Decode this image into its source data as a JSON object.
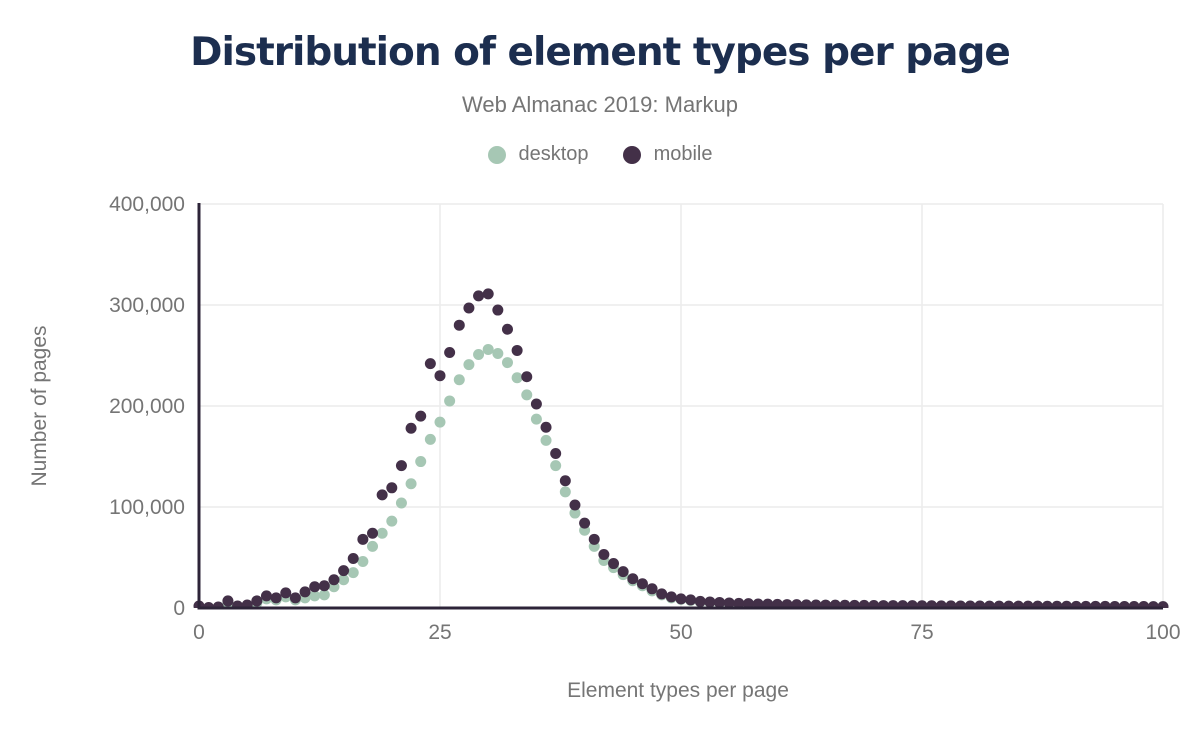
{
  "chart_data": {
    "type": "scatter",
    "title": "Distribution of element types per page",
    "subtitle": "Web Almanac 2019: Markup",
    "xlabel": "Element types per page",
    "ylabel": "Number of pages",
    "xlim": [
      0,
      100
    ],
    "ylim": [
      0,
      400000
    ],
    "grid": true,
    "legend_position": "top",
    "x_ticks": [
      {
        "value": 0,
        "label": "0"
      },
      {
        "value": 25,
        "label": "25"
      },
      {
        "value": 50,
        "label": "50"
      },
      {
        "value": 75,
        "label": "75"
      },
      {
        "value": 100,
        "label": "100"
      }
    ],
    "y_ticks": [
      {
        "value": 0,
        "label": "0"
      },
      {
        "value": 100000,
        "label": "100,000"
      },
      {
        "value": 200000,
        "label": "200,000"
      },
      {
        "value": 300000,
        "label": "300,000"
      },
      {
        "value": 400000,
        "label": "400,000"
      }
    ],
    "colors": {
      "title": "#1c2e4f",
      "subtitle": "#757575",
      "axis": "#2d2438",
      "grid": "#ececec",
      "tick_text": "#757575"
    },
    "x": [
      0,
      1,
      2,
      3,
      4,
      5,
      6,
      7,
      8,
      9,
      10,
      11,
      12,
      13,
      14,
      15,
      16,
      17,
      18,
      19,
      20,
      21,
      22,
      23,
      24,
      25,
      26,
      27,
      28,
      29,
      30,
      31,
      32,
      33,
      34,
      35,
      36,
      37,
      38,
      39,
      40,
      41,
      42,
      43,
      44,
      45,
      46,
      47,
      48,
      49,
      50,
      51,
      52,
      53,
      54,
      55,
      56,
      57,
      58,
      59,
      60,
      61,
      62,
      63,
      64,
      65,
      66,
      67,
      68,
      69,
      70,
      71,
      72,
      73,
      74,
      75,
      76,
      77,
      78,
      79,
      80,
      81,
      82,
      83,
      84,
      85,
      86,
      87,
      88,
      89,
      90,
      91,
      92,
      93,
      94,
      95,
      96,
      97,
      98,
      99,
      100
    ],
    "series": [
      {
        "name": "desktop",
        "color": "#a6c7b4",
        "values": [
          1500,
          300,
          800,
          5000,
          1500,
          2000,
          5000,
          9000,
          8000,
          11000,
          8000,
          10000,
          12000,
          13000,
          21000,
          28000,
          35000,
          46000,
          61000,
          74000,
          86000,
          104000,
          123000,
          145000,
          167000,
          184000,
          205000,
          226000,
          241000,
          251000,
          256000,
          252000,
          243000,
          228000,
          211000,
          187000,
          166000,
          141000,
          115000,
          94000,
          77000,
          61000,
          47000,
          40000,
          33000,
          27000,
          22000,
          17000,
          13000,
          10000,
          8500,
          7500,
          6000,
          5500,
          5000,
          4600,
          4200,
          3900,
          3700,
          3500,
          3300,
          3100,
          3000,
          2900,
          2800,
          2700,
          2600,
          2500,
          2400,
          2400,
          2300,
          2200,
          2200,
          2100,
          2100,
          2000,
          2000,
          1900,
          1900,
          1800,
          1800,
          1800,
          1700,
          1700,
          1700,
          1600,
          1600,
          1600,
          1500,
          1500,
          1500,
          1500,
          1400,
          1400,
          1400,
          1400,
          1300,
          1300,
          1300,
          1300,
          1300
        ]
      },
      {
        "name": "mobile",
        "color": "#433048",
        "values": [
          2000,
          500,
          1000,
          7000,
          2000,
          3000,
          7000,
          12000,
          10000,
          15000,
          10000,
          16000,
          21000,
          22000,
          28000,
          37000,
          49000,
          68000,
          74000,
          112000,
          119000,
          141000,
          178000,
          190000,
          242000,
          230000,
          253000,
          280000,
          297000,
          309000,
          311000,
          295000,
          276000,
          255000,
          229000,
          202000,
          179000,
          153000,
          126000,
          102000,
          84000,
          68000,
          53000,
          44000,
          36000,
          29000,
          24000,
          19000,
          14000,
          11000,
          9000,
          8000,
          6500,
          6000,
          5500,
          5000,
          4600,
          4300,
          4000,
          3800,
          3600,
          3400,
          3300,
          3100,
          3000,
          2900,
          2800,
          2700,
          2600,
          2600,
          2500,
          2400,
          2400,
          2300,
          2300,
          2200,
          2200,
          2100,
          2100,
          2000,
          2000,
          2000,
          1900,
          1900,
          1900,
          1800,
          1800,
          1800,
          1700,
          1700,
          1700,
          1600,
          1600,
          1600,
          1600,
          1500,
          1500,
          1500,
          1500,
          1400,
          1400
        ]
      }
    ]
  }
}
